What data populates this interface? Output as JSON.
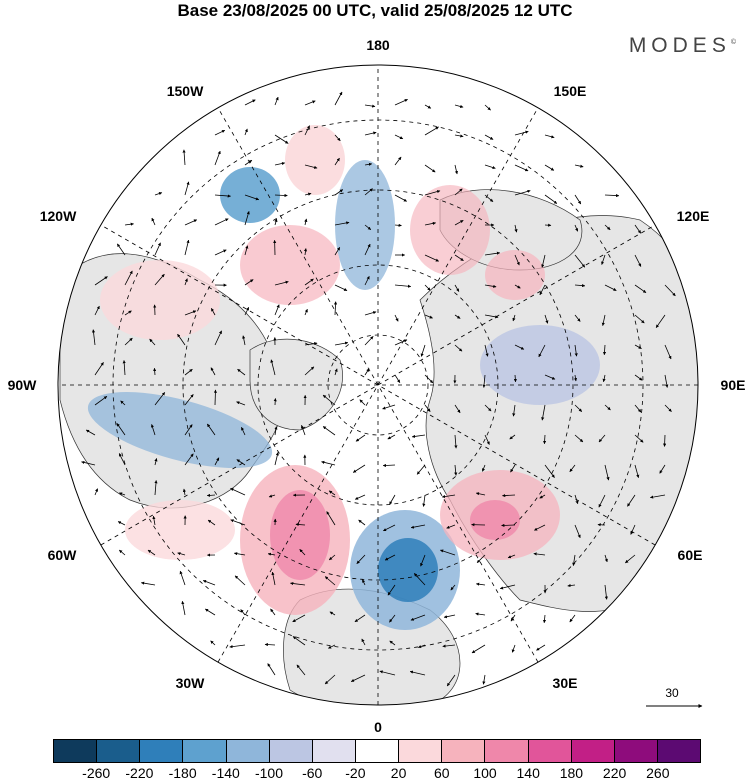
{
  "title": "Base 23/08/2025 00 UTC, valid 25/08/2025 12 UTC",
  "brand": "MODES",
  "brand_mark": "©",
  "longitude_labels": [
    {
      "id": "lon-180",
      "text": "180"
    },
    {
      "id": "lon-150e",
      "text": "150E"
    },
    {
      "id": "lon-120e",
      "text": "120E"
    },
    {
      "id": "lon-90e",
      "text": "90E"
    },
    {
      "id": "lon-60e",
      "text": "60E"
    },
    {
      "id": "lon-30e",
      "text": "30E"
    },
    {
      "id": "lon-0",
      "text": "0"
    },
    {
      "id": "lon-30w",
      "text": "30W"
    },
    {
      "id": "lon-60w",
      "text": "60W"
    },
    {
      "id": "lon-90w",
      "text": "90W"
    },
    {
      "id": "lon-120w",
      "text": "120W"
    },
    {
      "id": "lon-150w",
      "text": "150W"
    }
  ],
  "reference_vector": {
    "value": "30"
  },
  "colorbar": {
    "colors": [
      "#0e3a5c",
      "#1a5d8c",
      "#2f7fba",
      "#5ea1cf",
      "#8fb6da",
      "#bcc6e3",
      "#e1e0ef",
      "#ffffff",
      "#fbd9dc",
      "#f6b3bd",
      "#ef87aa",
      "#e1559a",
      "#c21f86",
      "#8e0c7c",
      "#5c0a72"
    ],
    "ticks": [
      "-260",
      "-220",
      "-180",
      "-140",
      "-100",
      "-60",
      "-20",
      "20",
      "60",
      "100",
      "140",
      "180",
      "220",
      "260"
    ]
  },
  "colors": {
    "land": "#e9e9e9",
    "ocean": "#ffffff",
    "graticule": "#000000"
  }
}
